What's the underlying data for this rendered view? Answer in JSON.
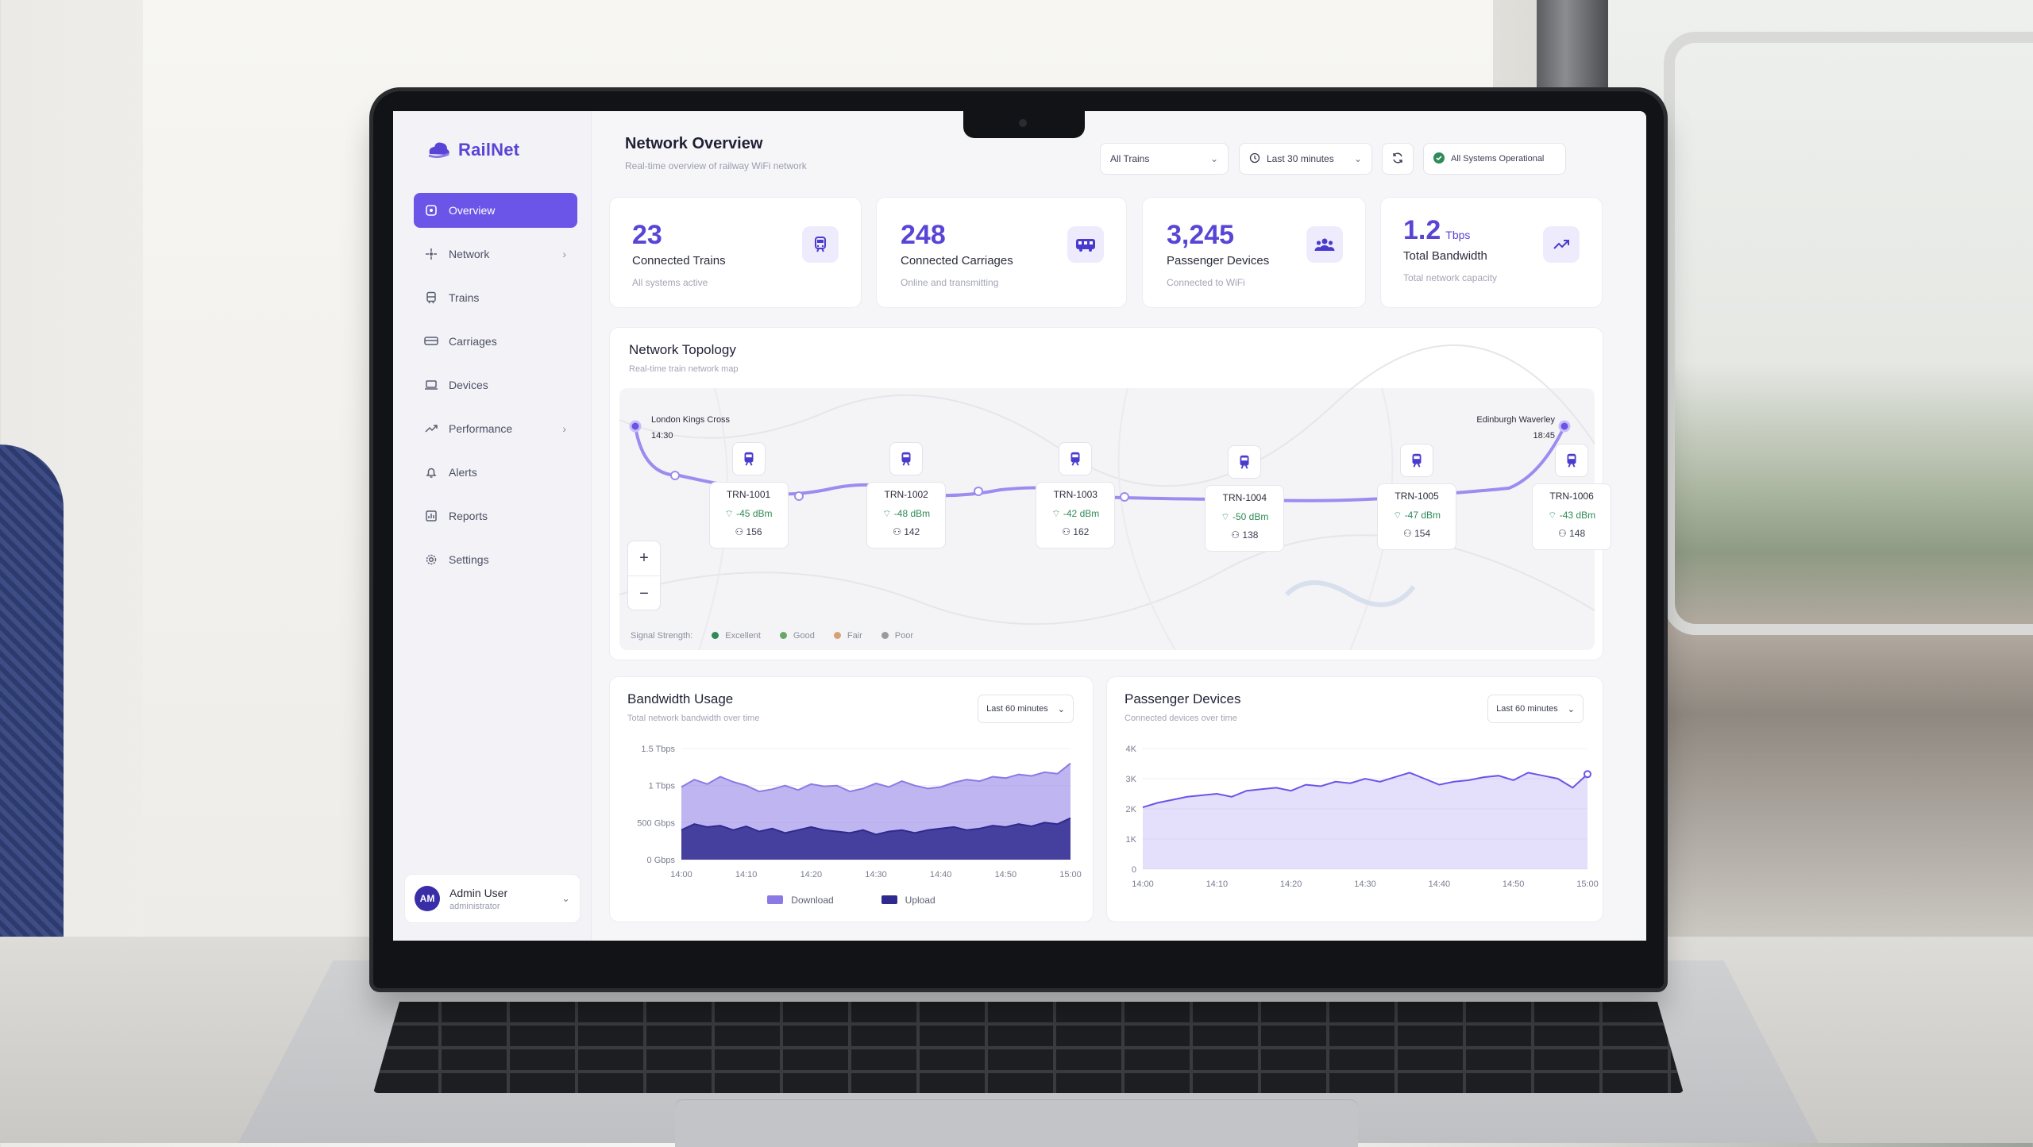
{
  "app": {
    "name": "RailNet"
  },
  "sidebar": {
    "items": [
      {
        "label": "Overview",
        "icon": "overview-icon",
        "active": true
      },
      {
        "label": "Network",
        "icon": "network-icon",
        "chevron": true
      },
      {
        "label": "Trains",
        "icon": "train-icon"
      },
      {
        "label": "Carriages",
        "icon": "carriage-icon"
      },
      {
        "label": "Devices",
        "icon": "laptop-icon"
      },
      {
        "label": "Performance",
        "icon": "trend-icon",
        "chevron": true
      },
      {
        "label": "Alerts",
        "icon": "bell-icon"
      },
      {
        "label": "Reports",
        "icon": "report-icon"
      },
      {
        "label": "Settings",
        "icon": "gear-icon"
      }
    ],
    "user": {
      "initials": "AM",
      "name": "Admin User",
      "role": "administrator"
    }
  },
  "header": {
    "title": "Network Overview",
    "subtitle": "Real-time overview of railway WiFi network",
    "train_filter": "All Trains",
    "time_range": "Last 30 minutes",
    "status": "All Systems Operational"
  },
  "stats": [
    {
      "value": "23",
      "unit": "",
      "label": "Connected Trains",
      "sub": "All systems active",
      "icon": "train-icon"
    },
    {
      "value": "248",
      "unit": "",
      "label": "Connected Carriages",
      "sub": "Online and transmitting",
      "icon": "bus-icon"
    },
    {
      "value": "3,245",
      "unit": "",
      "label": "Passenger Devices",
      "sub": "Connected to WiFi",
      "icon": "users-icon"
    },
    {
      "value": "1.2",
      "unit": "Tbps",
      "label": "Total Bandwidth",
      "sub": "Total network capacity",
      "icon": "trend-icon"
    }
  ],
  "topology": {
    "title": "Network Topology",
    "subtitle": "Real-time train network map",
    "start": {
      "name": "London Kings Cross",
      "time": "14:30"
    },
    "end": {
      "name": "Edinburgh Waverley",
      "time": "18:45"
    },
    "trains": [
      {
        "id": "TRN-1001",
        "signal": "-45 dBm",
        "passengers": "156"
      },
      {
        "id": "TRN-1002",
        "signal": "-48 dBm",
        "passengers": "142"
      },
      {
        "id": "TRN-1003",
        "signal": "-42 dBm",
        "passengers": "162"
      },
      {
        "id": "TRN-1004",
        "signal": "-50 dBm",
        "passengers": "138"
      },
      {
        "id": "TRN-1005",
        "signal": "-47 dBm",
        "passengers": "154"
      },
      {
        "id": "TRN-1006",
        "signal": "-43 dBm",
        "passengers": "148"
      }
    ],
    "legend": {
      "label": "Signal Strength:",
      "items": [
        {
          "label": "Excellent",
          "color": "#2e8b57"
        },
        {
          "label": "Good",
          "color": "#6aa66a"
        },
        {
          "label": "Fair",
          "color": "#d4a373"
        },
        {
          "label": "Poor",
          "color": "#9a9a9a"
        }
      ]
    }
  },
  "chart_data": [
    {
      "type": "area",
      "title": "Bandwidth Usage",
      "subtitle": "Total network bandwidth over time",
      "range_label": "Last 60 minutes",
      "x_ticks": [
        "14:00",
        "14:10",
        "14:20",
        "14:30",
        "14:40",
        "14:50",
        "15:00"
      ],
      "y_ticks": [
        "1.5 Tbps",
        "1 Tbps",
        "500 Gbps",
        "0 Gbps"
      ],
      "ylim": [
        0,
        1.5
      ],
      "series": [
        {
          "name": "Download",
          "color": "#8b7ae6",
          "values": [
            0.98,
            1.08,
            1.02,
            1.12,
            1.05,
            1.0,
            0.92,
            0.95,
            1.0,
            0.94,
            1.02,
            0.99,
            1.0,
            0.92,
            0.96,
            1.03,
            0.98,
            1.06,
            1.0,
            0.96,
            0.98,
            1.04,
            1.08,
            1.06,
            1.12,
            1.1,
            1.15,
            1.13,
            1.18,
            1.16,
            1.3
          ]
        },
        {
          "name": "Upload",
          "color": "#2f2a8f",
          "values": [
            0.4,
            0.48,
            0.44,
            0.46,
            0.4,
            0.45,
            0.38,
            0.42,
            0.36,
            0.4,
            0.44,
            0.4,
            0.38,
            0.36,
            0.4,
            0.34,
            0.38,
            0.4,
            0.36,
            0.4,
            0.42,
            0.44,
            0.4,
            0.42,
            0.46,
            0.44,
            0.48,
            0.45,
            0.5,
            0.48,
            0.56
          ]
        }
      ]
    },
    {
      "type": "area",
      "title": "Passenger Devices",
      "subtitle": "Connected devices over time",
      "range_label": "Last 60 minutes",
      "x_ticks": [
        "14:00",
        "14:10",
        "14:20",
        "14:30",
        "14:40",
        "14:50",
        "15:00"
      ],
      "y_ticks": [
        "4K",
        "3K",
        "2K",
        "1K",
        "0"
      ],
      "ylim": [
        0,
        4000
      ],
      "series": [
        {
          "name": "Devices",
          "color": "#6a55e8",
          "values": [
            2050,
            2200,
            2300,
            2400,
            2450,
            2500,
            2400,
            2600,
            2650,
            2700,
            2600,
            2800,
            2750,
            2900,
            2850,
            3000,
            2900,
            3050,
            3200,
            3000,
            2800,
            2900,
            2950,
            3050,
            3100,
            2950,
            3200,
            3100,
            3000,
            2700,
            3150
          ]
        }
      ]
    }
  ]
}
